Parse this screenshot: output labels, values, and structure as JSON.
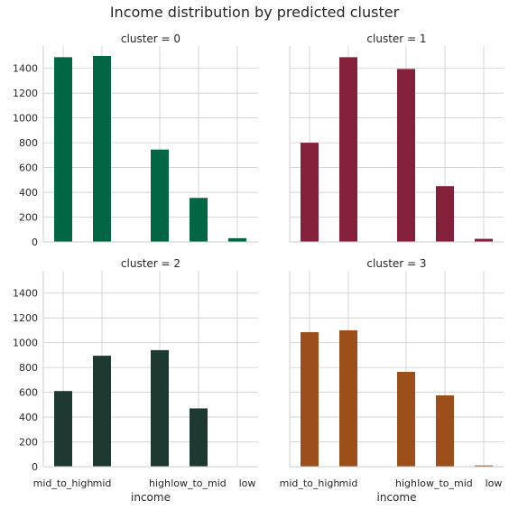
{
  "chart_data": {
    "type": "bar",
    "title": "Income distribution by predicted cluster",
    "xlabel": "income",
    "ylabel": "",
    "ylim": [
      0,
      1580
    ],
    "yticks": [
      0,
      200,
      400,
      600,
      800,
      1000,
      1200,
      1400
    ],
    "categories": [
      "mid_to_high",
      "mid",
      "high",
      "low_to_mid",
      "low"
    ],
    "grid": true,
    "panels": [
      {
        "title": "cluster = 0",
        "color": "#006644",
        "values": [
          1490,
          1500,
          745,
          355,
          30
        ]
      },
      {
        "title": "cluster = 1",
        "color": "#85203b",
        "values": [
          800,
          1490,
          1395,
          450,
          25
        ]
      },
      {
        "title": "cluster = 2",
        "color": "#1e3932",
        "values": [
          610,
          895,
          940,
          470,
          0
        ]
      },
      {
        "title": "cluster = 3",
        "color": "#9c4f1a",
        "values": [
          1085,
          1100,
          765,
          575,
          10
        ]
      }
    ]
  }
}
